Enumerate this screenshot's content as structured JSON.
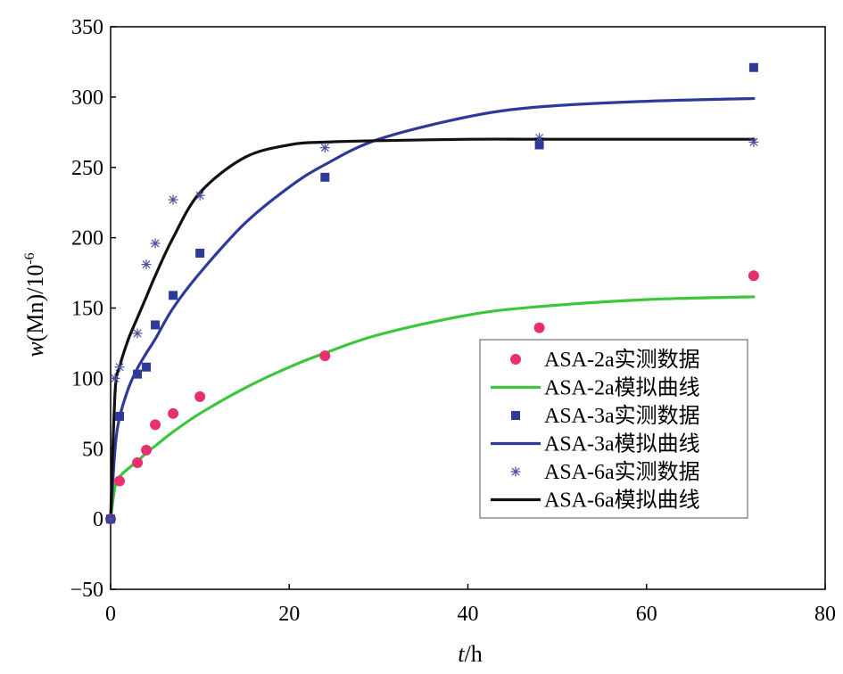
{
  "chart_data": {
    "type": "scatter",
    "xlabel_italic": "t",
    "xlabel_rest": "/h",
    "ylabel_italic": "w",
    "ylabel_rest": "(Mn)/10",
    "ylabel_sup": "-6",
    "xlim": [
      0,
      80
    ],
    "ylim": [
      -50,
      350
    ],
    "xticks": [
      0,
      20,
      40,
      60,
      80
    ],
    "yticks": [
      -50,
      0,
      50,
      100,
      150,
      200,
      250,
      300,
      350
    ],
    "ytick_labels": [
      "−50",
      "0",
      "50",
      "100",
      "150",
      "200",
      "250",
      "300",
      "350"
    ],
    "grid": false,
    "legend_position": "center-right",
    "series": [
      {
        "name": "ASA-2a实测数据",
        "kind": "points",
        "marker": "circle",
        "color": "#e8306e",
        "x": [
          0,
          1,
          3,
          4,
          5,
          7,
          10,
          24,
          48,
          72
        ],
        "y": [
          0,
          27,
          40,
          49,
          67,
          75,
          87,
          116,
          136,
          173
        ]
      },
      {
        "name": "ASA-2a模拟曲线",
        "kind": "line",
        "color": "#3cc63c",
        "x": [
          0,
          0.5,
          1,
          2,
          3,
          4,
          5,
          7,
          10,
          15,
          20,
          24,
          30,
          40,
          48,
          60,
          72
        ],
        "y": [
          0,
          23,
          30,
          36,
          41,
          47,
          52,
          62,
          75,
          93,
          108,
          118,
          131,
          145,
          151,
          156,
          158
        ]
      },
      {
        "name": "ASA-3a实测数据",
        "kind": "points",
        "marker": "square",
        "color": "#2d3a9a",
        "x": [
          0,
          1,
          3,
          4,
          5,
          7,
          10,
          24,
          48,
          72
        ],
        "y": [
          0,
          73,
          103,
          108,
          138,
          159,
          189,
          243,
          266,
          321
        ]
      },
      {
        "name": "ASA-3a模拟曲线",
        "kind": "line",
        "color": "#2d3a9a",
        "x": [
          0,
          0.5,
          1,
          2,
          3,
          4,
          5,
          7,
          10,
          15,
          20,
          24,
          30,
          40,
          48,
          60,
          72
        ],
        "y": [
          0,
          50,
          72,
          93,
          107,
          118,
          128,
          150,
          175,
          210,
          236,
          252,
          270,
          286,
          293,
          297,
          299
        ]
      },
      {
        "name": "ASA-6a实测数据",
        "kind": "points",
        "marker": "star",
        "color": "#4a4f9e",
        "x": [
          0,
          0.5,
          1,
          3,
          4,
          5,
          7,
          10,
          24,
          48,
          72
        ],
        "y": [
          0,
          100,
          108,
          132,
          181,
          196,
          227,
          230,
          264,
          271,
          268
        ]
      },
      {
        "name": "ASA-6a模拟曲线",
        "kind": "line",
        "color": "#111111",
        "x": [
          0,
          0.5,
          1,
          2,
          3,
          4,
          5,
          7,
          10,
          15,
          20,
          24,
          30,
          40,
          48,
          60,
          72
        ],
        "y": [
          0,
          90,
          108,
          128,
          143,
          158,
          173,
          200,
          232,
          257,
          266,
          268,
          269,
          270,
          270,
          270,
          270
        ]
      }
    ]
  }
}
